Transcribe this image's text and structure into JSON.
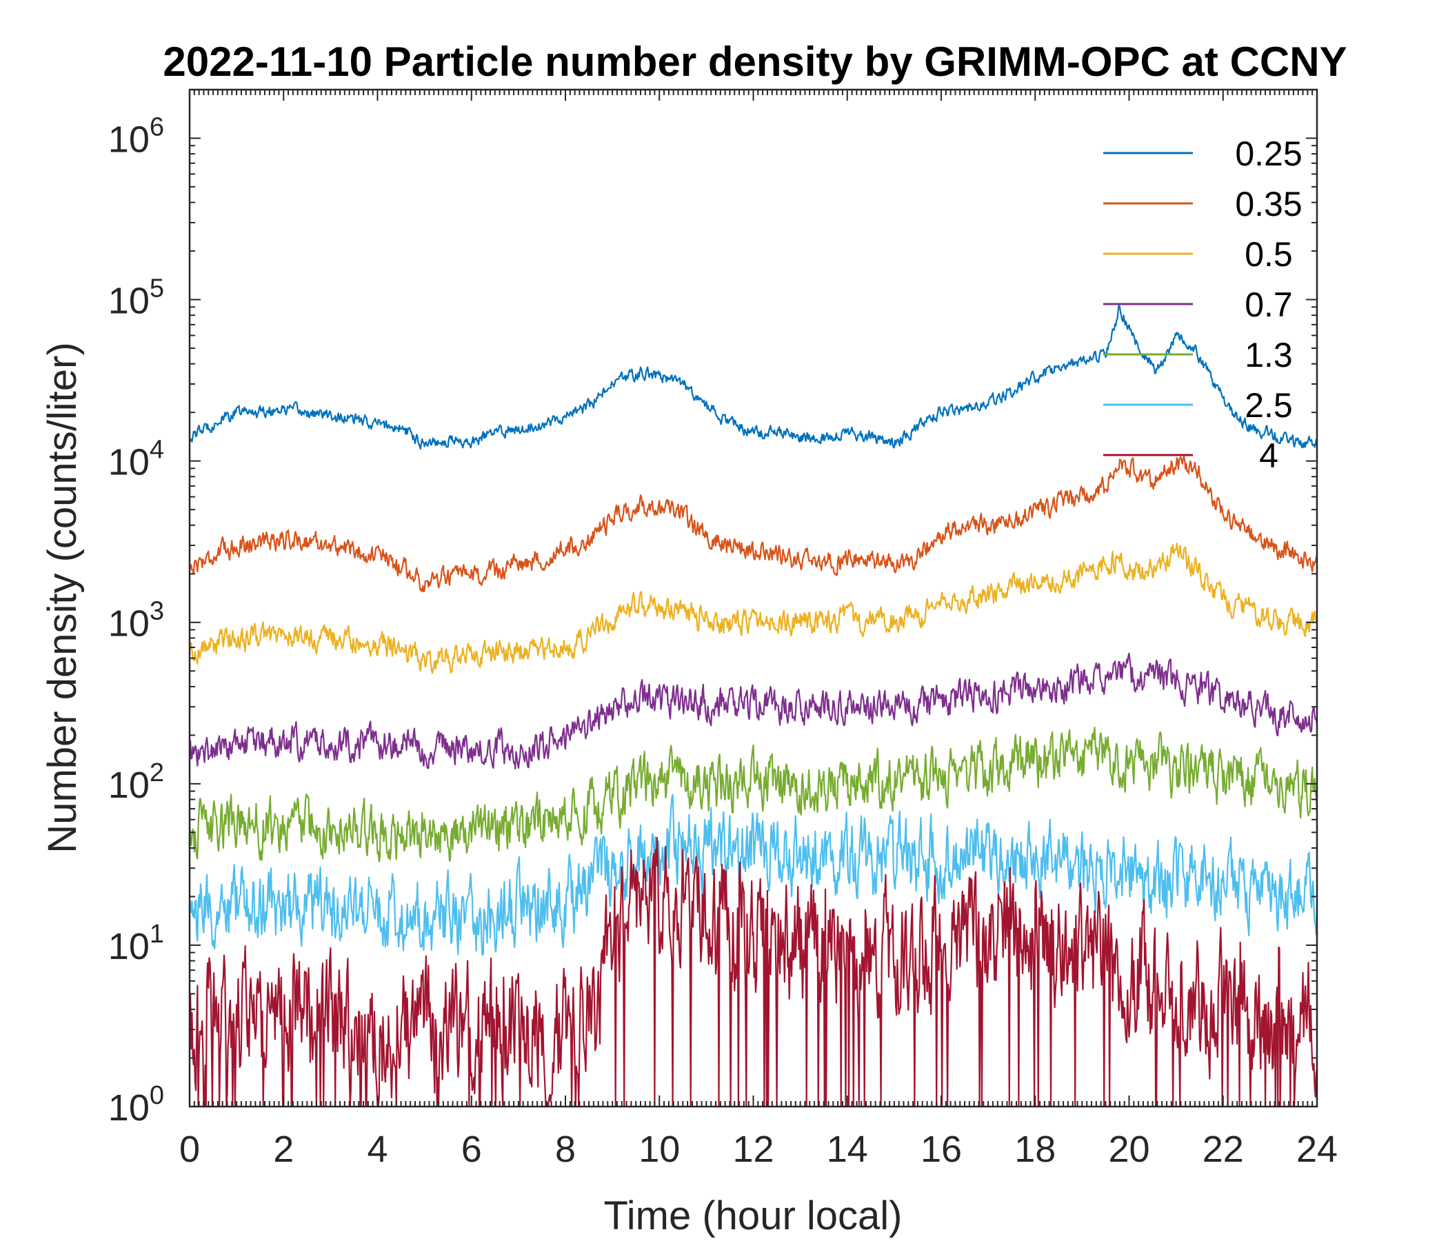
{
  "chart_data": {
    "type": "line",
    "title": "2022-11-10 Particle number density by GRIMM-OPC at CCNY",
    "xlabel": "Time (hour local)",
    "ylabel": "Number density (counts/liter)",
    "xlim": [
      0,
      24
    ],
    "ylim": [
      1,
      2000000
    ],
    "yscale": "log",
    "xticks": [
      0,
      2,
      4,
      6,
      8,
      10,
      12,
      14,
      16,
      18,
      20,
      22,
      24
    ],
    "yticks": [
      {
        "base": "10",
        "exp": "0",
        "value": 1
      },
      {
        "base": "10",
        "exp": "1",
        "value": 10
      },
      {
        "base": "10",
        "exp": "2",
        "value": 100
      },
      {
        "base": "10",
        "exp": "3",
        "value": 1000
      },
      {
        "base": "10",
        "exp": "4",
        "value": 10000
      },
      {
        "base": "10",
        "exp": "5",
        "value": 100000
      },
      {
        "base": "10",
        "exp": "6",
        "value": 1000000
      }
    ],
    "legend_position": "top-right",
    "series": [
      {
        "name": "0.25",
        "color": "#0072BD",
        "noise": 0.03,
        "floor_at_zero": false,
        "x": [
          0,
          0.5,
          1,
          1.5,
          2,
          2.5,
          3,
          3.5,
          4,
          4.5,
          5,
          5.5,
          6,
          6.5,
          7,
          7.5,
          8,
          8.5,
          9,
          9.5,
          10,
          10.5,
          11,
          11.5,
          12,
          12.5,
          13,
          13.5,
          14,
          14.5,
          15,
          15.5,
          16,
          16.5,
          17,
          17.5,
          18,
          18.5,
          19,
          19.5,
          19.8,
          20.2,
          20.6,
          21,
          21.4,
          21.8,
          22.2,
          22.6,
          23,
          23.5,
          24
        ],
        "y": [
          14000,
          17000,
          20000,
          20500,
          21000,
          20000,
          19000,
          18000,
          17000,
          16000,
          13000,
          13500,
          13000,
          15000,
          16000,
          17000,
          19000,
          22000,
          30000,
          35000,
          34000,
          30000,
          22000,
          17000,
          15000,
          15500,
          14000,
          14000,
          15000,
          14000,
          13000,
          16000,
          20000,
          21000,
          23000,
          27000,
          33000,
          38000,
          40000,
          45000,
          90000,
          50000,
          35000,
          60000,
          50000,
          30000,
          20000,
          16000,
          15000,
          13000,
          13000
        ]
      },
      {
        "name": "0.35",
        "color": "#D95319",
        "noise": 0.05,
        "floor_at_zero": false,
        "x": [
          0,
          0.5,
          1,
          1.5,
          2,
          2.5,
          3,
          3.5,
          4,
          4.5,
          5,
          5.5,
          6,
          6.5,
          7,
          7.5,
          8,
          8.5,
          9,
          9.5,
          10,
          10.5,
          11,
          11.5,
          12,
          12.5,
          13,
          13.5,
          14,
          14.5,
          15,
          15.5,
          16,
          16.5,
          17,
          17.5,
          18,
          18.5,
          19,
          19.5,
          19.8,
          20.2,
          20.6,
          21,
          21.4,
          21.8,
          22.2,
          22.6,
          23,
          23.5,
          24
        ],
        "y": [
          2200,
          2600,
          3000,
          3200,
          3300,
          3200,
          3000,
          2800,
          2600,
          2200,
          1800,
          1900,
          1900,
          2100,
          2300,
          2500,
          2800,
          3200,
          4500,
          5300,
          5100,
          4500,
          3500,
          3000,
          2800,
          2700,
          2400,
          2300,
          2500,
          2400,
          2200,
          2600,
          3500,
          3800,
          4000,
          4500,
          5000,
          5500,
          6000,
          7000,
          10500,
          8000,
          7500,
          10000,
          9000,
          6000,
          4200,
          3500,
          3000,
          2600,
          2400
        ]
      },
      {
        "name": "0.5",
        "color": "#EDB120",
        "noise": 0.06,
        "floor_at_zero": false,
        "x": [
          0,
          0.5,
          1,
          1.5,
          2,
          2.5,
          3,
          3.5,
          4,
          4.5,
          5,
          5.5,
          6,
          6.5,
          7,
          7.5,
          8,
          8.5,
          9,
          9.5,
          10,
          10.5,
          11,
          11.5,
          12,
          12.5,
          13,
          13.5,
          14,
          14.5,
          15,
          15.5,
          16,
          16.5,
          17,
          17.5,
          18,
          18.5,
          19,
          19.5,
          19.8,
          20.2,
          20.6,
          21,
          21.4,
          21.8,
          22.2,
          22.6,
          23,
          23.5,
          24
        ],
        "y": [
          650,
          720,
          800,
          820,
          830,
          800,
          780,
          760,
          740,
          700,
          600,
          600,
          620,
          640,
          660,
          680,
          720,
          800,
          1100,
          1250,
          1250,
          1150,
          1050,
          1000,
          1000,
          1000,
          1000,
          1000,
          1050,
          1000,
          1000,
          1050,
          1300,
          1400,
          1450,
          1600,
          1750,
          1850,
          1950,
          2200,
          2600,
          2000,
          2100,
          2700,
          2300,
          1600,
          1300,
          1200,
          1100,
          1000,
          950
        ]
      },
      {
        "name": "0.7",
        "color": "#7E2F8E",
        "noise": 0.08,
        "floor_at_zero": false,
        "x": [
          0,
          1,
          2,
          3,
          4,
          5,
          6,
          7,
          8,
          8.5,
          9,
          9.5,
          10,
          11,
          12,
          13,
          14,
          15,
          16,
          17,
          18,
          19,
          19.8,
          20.5,
          21,
          21.5,
          22,
          23,
          24
        ],
        "y": [
          150,
          175,
          185,
          180,
          175,
          170,
          160,
          165,
          185,
          230,
          300,
          320,
          320,
          320,
          310,
          300,
          300,
          300,
          330,
          360,
          400,
          430,
          500,
          450,
          430,
          400,
          320,
          280,
          260
        ]
      },
      {
        "name": "1.3",
        "color": "#77AC30",
        "noise": 0.13,
        "floor_at_zero": false,
        "x": [
          0,
          1,
          2,
          3,
          4,
          5,
          6,
          7,
          8,
          8.5,
          9,
          9.5,
          10,
          11,
          12,
          13,
          14,
          15,
          16,
          17,
          18,
          19,
          20,
          21,
          22,
          23,
          24
        ],
        "y": [
          50,
          55,
          55,
          50,
          50,
          50,
          50,
          55,
          60,
          70,
          85,
          95,
          100,
          100,
          100,
          100,
          100,
          105,
          110,
          120,
          140,
          150,
          150,
          120,
          110,
          100,
          95
        ]
      },
      {
        "name": "2.5",
        "color": "#4DBEEE",
        "noise": 0.18,
        "floor_at_zero": false,
        "x": [
          0,
          1,
          2,
          3,
          4,
          5,
          6,
          7,
          8,
          8.5,
          9,
          9.5,
          10,
          11,
          12,
          13,
          14,
          15,
          16,
          17,
          18,
          19,
          20,
          21,
          22,
          23,
          24
        ],
        "y": [
          15,
          17,
          17,
          16,
          16,
          15,
          15,
          16,
          18,
          22,
          30,
          35,
          40,
          40,
          38,
          36,
          35,
          34,
          34,
          33,
          32,
          30,
          28,
          26,
          24,
          22,
          20
        ]
      },
      {
        "name": "4",
        "color": "#A2142F",
        "noise": 0.3,
        "floor_at_zero": true,
        "x": [
          0,
          1,
          2,
          3,
          4,
          5,
          6,
          7,
          8,
          8.7,
          9,
          9.5,
          10,
          10.5,
          11,
          12,
          13,
          14,
          15,
          16,
          17,
          18,
          19,
          20,
          21,
          22,
          23,
          24
        ],
        "y": [
          3,
          3.2,
          3.2,
          3,
          3,
          3,
          3,
          3.2,
          3.5,
          4,
          13,
          18,
          20,
          19,
          15,
          11,
          10,
          9,
          9,
          10,
          10,
          9,
          8,
          7,
          5,
          4,
          3,
          3
        ]
      }
    ]
  }
}
